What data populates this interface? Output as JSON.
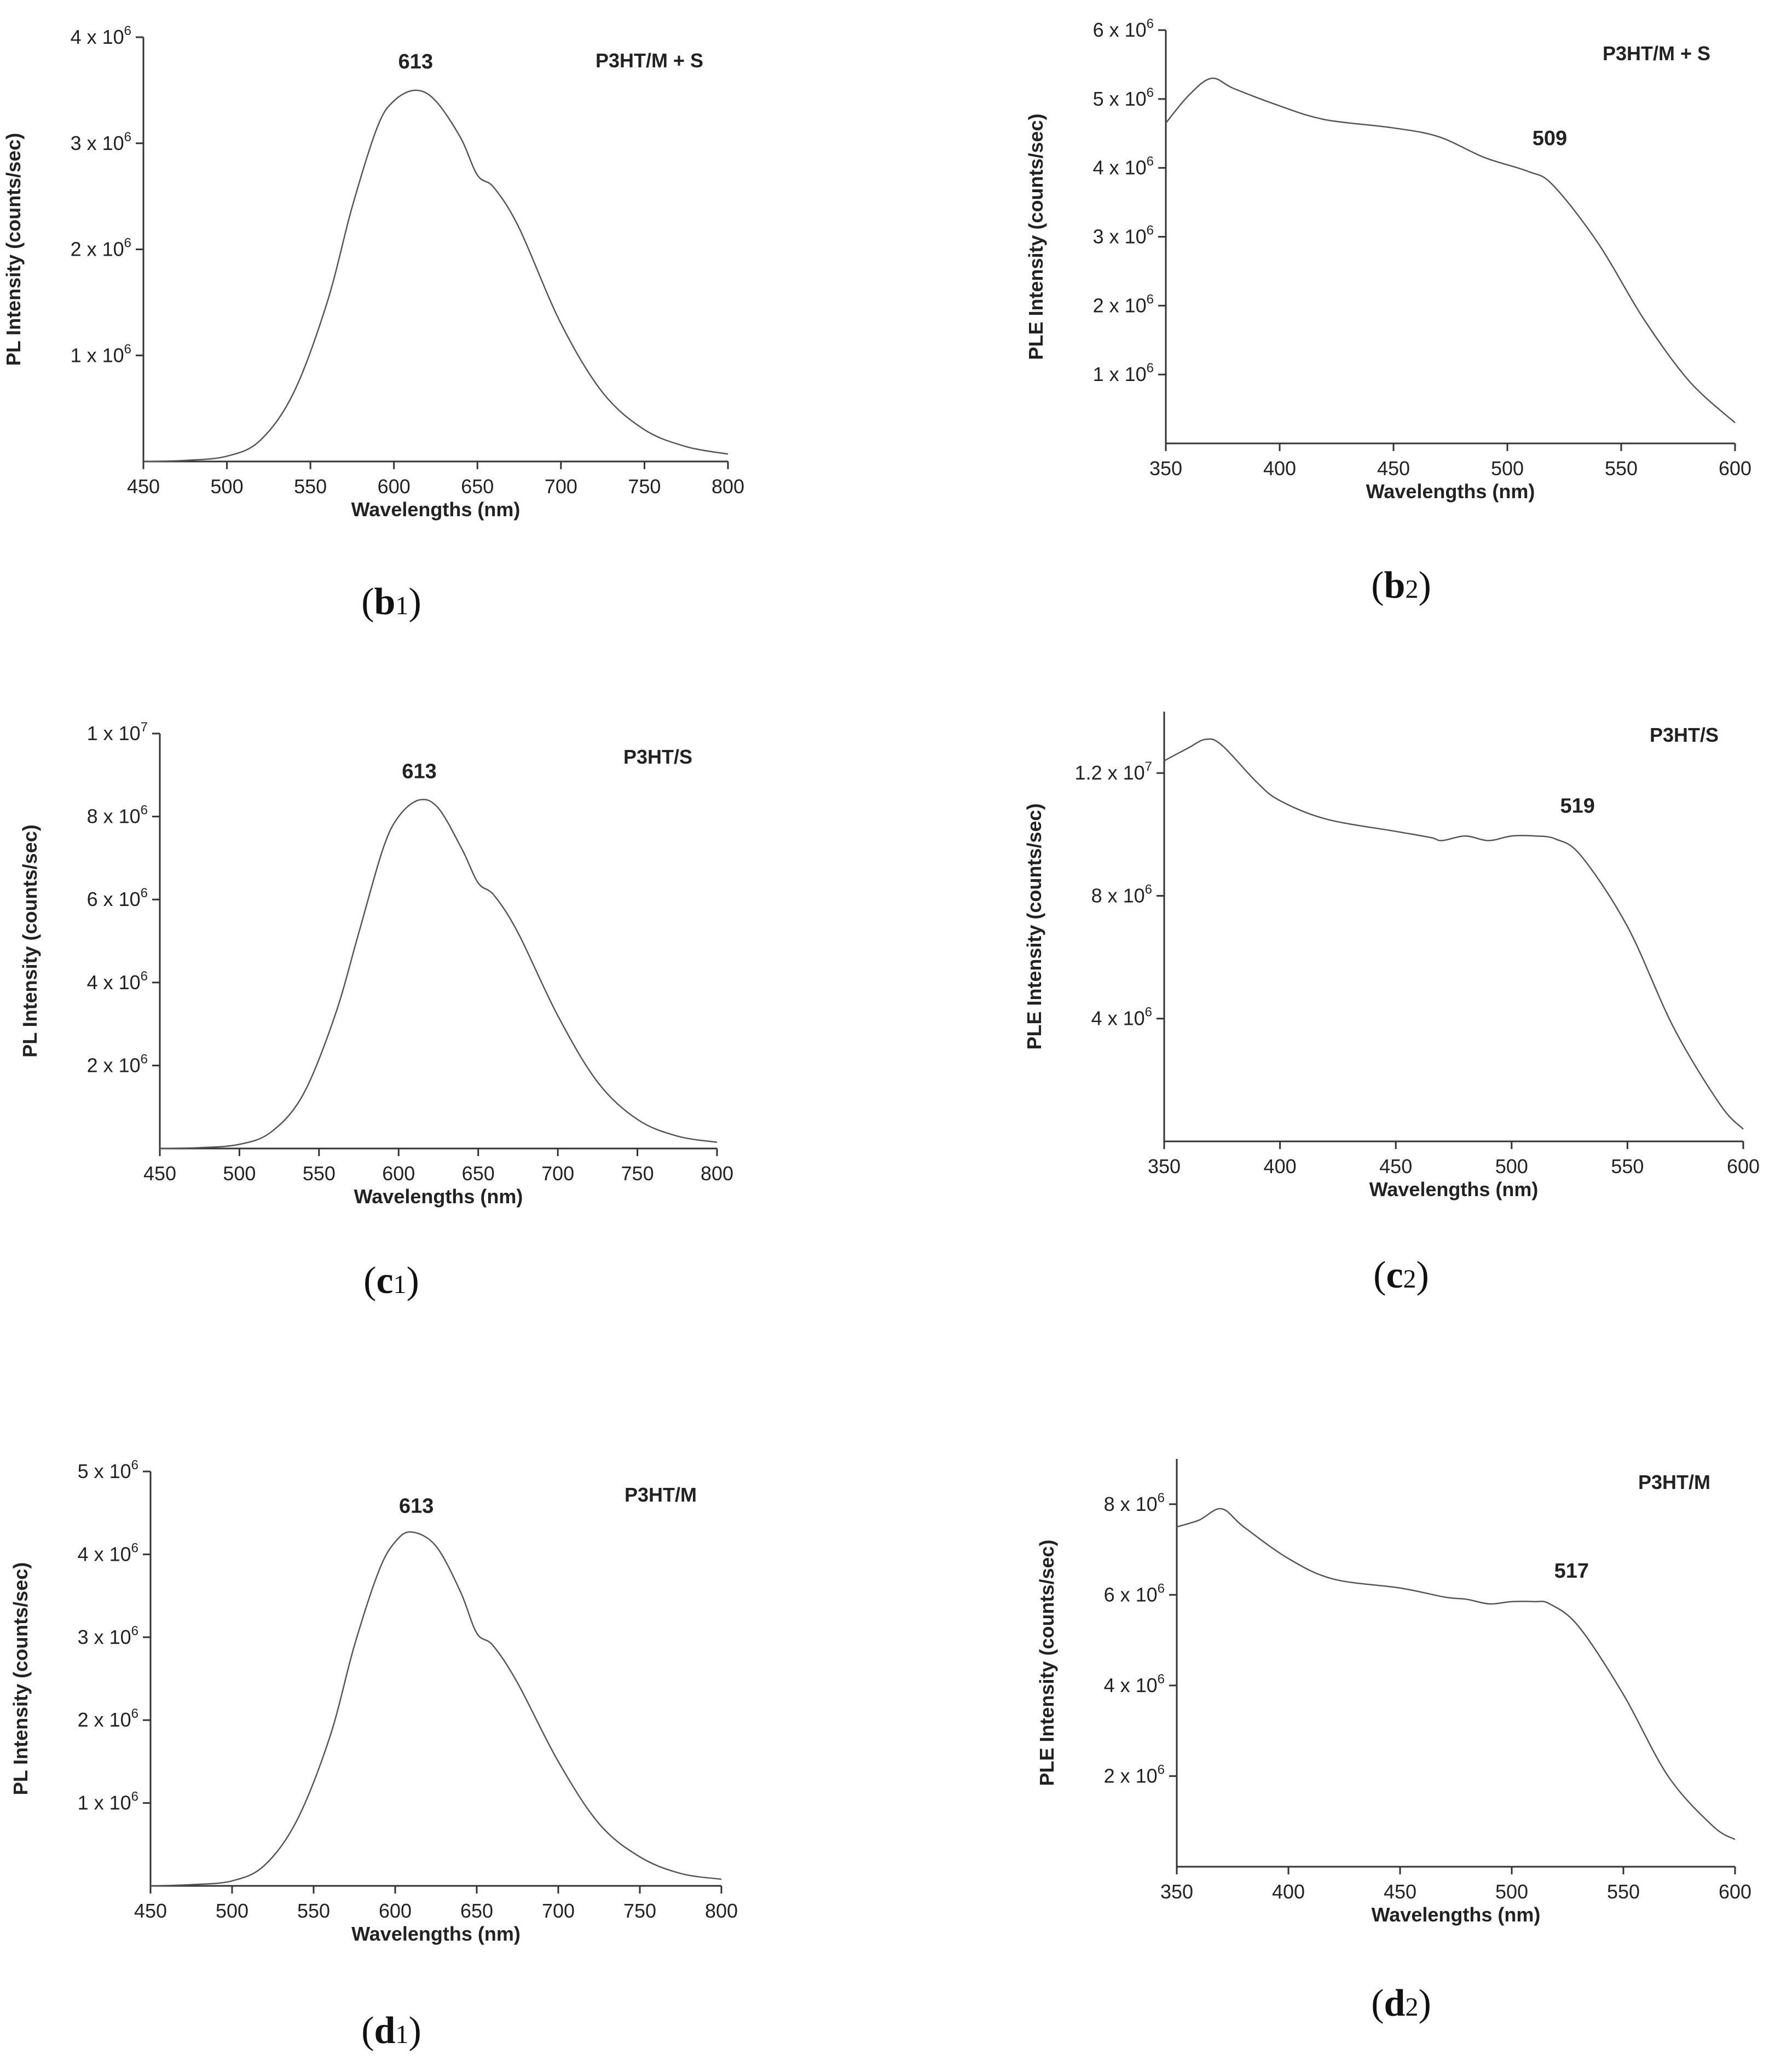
{
  "chart_data": [
    {
      "id": "b1",
      "type": "line",
      "panel_label": "b",
      "panel_sub": "1",
      "title": "",
      "legend": "P3HT/M + S",
      "peak_label": "613",
      "xlabel": "Wavelengths (nm)",
      "ylabel": "PL Intensity (counts/sec)",
      "xlim": [
        450,
        800
      ],
      "ylim": [
        0,
        4000000
      ],
      "xticks": [
        450,
        500,
        550,
        600,
        650,
        700,
        750,
        800
      ],
      "yticks": [
        {
          "value": 1000000,
          "m": "1",
          "e": "6"
        },
        {
          "value": 2000000,
          "m": "2",
          "e": "6"
        },
        {
          "value": 3000000,
          "m": "3",
          "e": "6"
        },
        {
          "value": 4000000,
          "m": "4",
          "e": "6"
        }
      ],
      "x": [
        450,
        475,
        500,
        520,
        540,
        560,
        575,
        590,
        600,
        613,
        625,
        640,
        650,
        660,
        675,
        700,
        725,
        750,
        775,
        800
      ],
      "y": [
        0,
        10000,
        50000,
        200000,
        650000,
        1500000,
        2400000,
        3150000,
        3400000,
        3500000,
        3400000,
        3050000,
        2700000,
        2580000,
        2200000,
        1300000,
        650000,
        300000,
        140000,
        70000
      ]
    },
    {
      "id": "b2",
      "type": "line",
      "panel_label": "b",
      "panel_sub": "2",
      "title": "",
      "legend": "P3HT/M + S",
      "peak_label": "509",
      "xlabel": "Wavelengths (nm)",
      "ylabel": "PLE Intensity (counts/sec)",
      "xlim": [
        350,
        600
      ],
      "ylim": [
        0,
        6000000
      ],
      "xticks": [
        350,
        400,
        450,
        500,
        550,
        600
      ],
      "yticks": [
        {
          "value": 1000000,
          "m": "1",
          "e": "6"
        },
        {
          "value": 2000000,
          "m": "2",
          "e": "6"
        },
        {
          "value": 3000000,
          "m": "3",
          "e": "6"
        },
        {
          "value": 4000000,
          "m": "4",
          "e": "6"
        },
        {
          "value": 5000000,
          "m": "5",
          "e": "6"
        },
        {
          "value": 6000000,
          "m": "6",
          "e": "6"
        }
      ],
      "x": [
        350,
        360,
        370,
        380,
        400,
        420,
        450,
        470,
        490,
        509,
        520,
        540,
        560,
        580,
        600
      ],
      "y": [
        4650000,
        5050000,
        5300000,
        5150000,
        4900000,
        4700000,
        4580000,
        4450000,
        4150000,
        3950000,
        3750000,
        2900000,
        1800000,
        900000,
        300000
      ]
    },
    {
      "id": "c1",
      "type": "line",
      "panel_label": "c",
      "panel_sub": "1",
      "title": "",
      "legend": "P3HT/S",
      "peak_label": "613",
      "xlabel": "Wavelengths (nm)",
      "ylabel": "PL Intensity (counts/sec)",
      "xlim": [
        450,
        800
      ],
      "ylim": [
        0,
        10000000
      ],
      "xticks": [
        450,
        500,
        550,
        600,
        650,
        700,
        750,
        800
      ],
      "yticks": [
        {
          "value": 2000000,
          "m": "2",
          "e": "6"
        },
        {
          "value": 4000000,
          "m": "4",
          "e": "6"
        },
        {
          "value": 6000000,
          "m": "6",
          "e": "6"
        },
        {
          "value": 8000000,
          "m": "8",
          "e": "6"
        },
        {
          "value": 10000000,
          "m": "1",
          "e": "7"
        }
      ],
      "x": [
        450,
        475,
        500,
        520,
        540,
        560,
        575,
        590,
        600,
        613,
        625,
        640,
        650,
        660,
        675,
        700,
        725,
        750,
        775,
        800
      ],
      "y": [
        0,
        20000,
        100000,
        400000,
        1300000,
        3200000,
        5200000,
        7200000,
        8000000,
        8400000,
        8200000,
        7200000,
        6400000,
        6100000,
        5200000,
        3200000,
        1600000,
        700000,
        300000,
        150000
      ]
    },
    {
      "id": "c2",
      "type": "line",
      "panel_label": "c",
      "panel_sub": "2",
      "title": "",
      "legend": "P3HT/S",
      "peak_label": "519",
      "xlabel": "Wavelengths (nm)",
      "ylabel": "PLE Intensity (counts/sec)",
      "xlim": [
        350,
        600
      ],
      "ylim": [
        0,
        14000000
      ],
      "xticks": [
        350,
        400,
        450,
        500,
        550,
        600
      ],
      "yticks": [
        {
          "value": 4000000,
          "m": "4",
          "e": "6"
        },
        {
          "value": 8000000,
          "m": "8",
          "e": "6"
        },
        {
          "value": 12000000,
          "m": "1.2",
          "e": "7"
        }
      ],
      "x": [
        350,
        360,
        368,
        375,
        390,
        400,
        420,
        450,
        465,
        470,
        480,
        490,
        500,
        510,
        519,
        530,
        550,
        570,
        590,
        600
      ],
      "y": [
        12400000,
        12800000,
        13100000,
        12900000,
        11700000,
        11100000,
        10500000,
        10100000,
        9900000,
        9800000,
        9950000,
        9800000,
        9950000,
        9950000,
        9850000,
        9300000,
        7000000,
        3700000,
        1200000,
        400000
      ]
    },
    {
      "id": "d1",
      "type": "line",
      "panel_label": "d",
      "panel_sub": "1",
      "title": "",
      "legend": "P3HT/M",
      "peak_label": "613",
      "xlabel": "Wavelengths (nm)",
      "ylabel": "PL Intensity (counts/sec)",
      "xlim": [
        450,
        800
      ],
      "ylim": [
        0,
        5000000
      ],
      "xticks": [
        450,
        500,
        550,
        600,
        650,
        700,
        750,
        800
      ],
      "yticks": [
        {
          "value": 1000000,
          "m": "1",
          "e": "6"
        },
        {
          "value": 2000000,
          "m": "2",
          "e": "6"
        },
        {
          "value": 3000000,
          "m": "3",
          "e": "6"
        },
        {
          "value": 4000000,
          "m": "4",
          "e": "6"
        },
        {
          "value": 5000000,
          "m": "5",
          "e": "6"
        }
      ],
      "x": [
        450,
        475,
        500,
        520,
        540,
        560,
        575,
        590,
        600,
        610,
        625,
        640,
        650,
        660,
        675,
        700,
        725,
        750,
        775,
        800
      ],
      "y": [
        0,
        15000,
        60000,
        250000,
        800000,
        1800000,
        2900000,
        3800000,
        4150000,
        4270000,
        4100000,
        3550000,
        3050000,
        2900000,
        2450000,
        1500000,
        750000,
        350000,
        150000,
        80000
      ]
    },
    {
      "id": "d2",
      "type": "line",
      "panel_label": "d",
      "panel_sub": "2",
      "title": "",
      "legend": "P3HT/M",
      "peak_label": "517",
      "xlabel": "Wavelengths (nm)",
      "ylabel": "PLE Intensity (counts/sec)",
      "xlim": [
        350,
        600
      ],
      "ylim": [
        0,
        9000000
      ],
      "xticks": [
        350,
        400,
        450,
        500,
        550,
        600
      ],
      "yticks": [
        {
          "value": 2000000,
          "m": "2",
          "e": "6"
        },
        {
          "value": 4000000,
          "m": "4",
          "e": "6"
        },
        {
          "value": 6000000,
          "m": "6",
          "e": "6"
        },
        {
          "value": 8000000,
          "m": "8",
          "e": "6"
        }
      ],
      "x": [
        350,
        360,
        370,
        380,
        400,
        420,
        450,
        470,
        480,
        490,
        500,
        510,
        517,
        530,
        550,
        570,
        590,
        600
      ],
      "y": [
        7500000,
        7650000,
        7900000,
        7500000,
        6800000,
        6350000,
        6150000,
        5950000,
        5900000,
        5800000,
        5850000,
        5850000,
        5800000,
        5300000,
        3800000,
        2000000,
        900000,
        600000
      ]
    }
  ]
}
